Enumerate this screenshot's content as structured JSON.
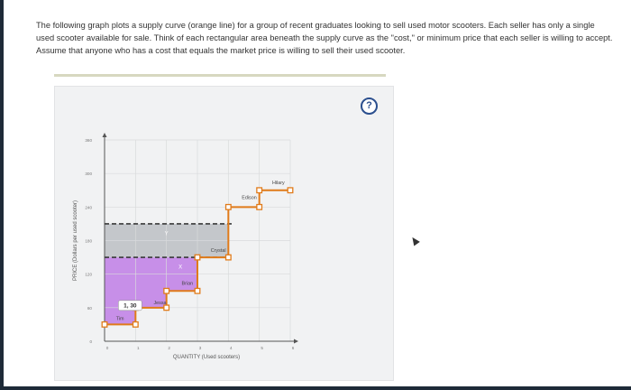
{
  "intro": {
    "text": "The following graph plots a supply curve (orange line) for a group of recent graduates looking to sell used motor scooters. Each seller has only a single used scooter available for sale. Think of each rectangular area beneath the supply curve as the \"cost,\" or minimum price that each seller is willing to accept. Assume that anyone who has a cost that equals the market price is willing to sell their used scooter."
  },
  "help": {
    "label": "?"
  },
  "colors": {
    "supply": "#e07b1a",
    "purple": "#c07ee5",
    "gray": "#b9bcc1",
    "dash": "#3a3a3a"
  },
  "chart_data": {
    "type": "line",
    "xlabel": "QUANTITY (Used scooters)",
    "ylabel": "PRICE (Dollars per used scooter)",
    "xlim": [
      0,
      6
    ],
    "ylim": [
      0,
      360
    ],
    "xticks": [
      "0",
      "1",
      "2",
      "3",
      "4",
      "5",
      "6"
    ],
    "yticks": [
      "0",
      "60",
      "120",
      "180",
      "240",
      "300",
      "360"
    ],
    "supply": {
      "name": "",
      "points": [
        [
          0,
          30
        ],
        [
          1,
          30
        ],
        [
          1,
          60
        ],
        [
          2,
          60
        ],
        [
          2,
          90
        ],
        [
          3,
          90
        ],
        [
          3,
          150
        ],
        [
          4,
          150
        ],
        [
          4,
          240
        ],
        [
          5,
          240
        ],
        [
          5,
          270
        ],
        [
          6,
          270
        ]
      ]
    },
    "sellers": [
      {
        "label": "Tim",
        "x": 0.5,
        "y": 30
      },
      {
        "label": "Jessa",
        "x": 1.5,
        "y": 60
      },
      {
        "label": "Brian",
        "x": 2.5,
        "y": 90
      },
      {
        "label": "Crystal",
        "x": 3.5,
        "y": 150
      },
      {
        "label": "Edison",
        "x": 4.5,
        "y": 240
      },
      {
        "label": "Hilary",
        "x": 5.5,
        "y": 270
      }
    ],
    "price_lines": [
      {
        "y": 150,
        "label": "X"
      },
      {
        "y": 210,
        "label": "Y"
      }
    ],
    "tooltip": "1, 30"
  }
}
